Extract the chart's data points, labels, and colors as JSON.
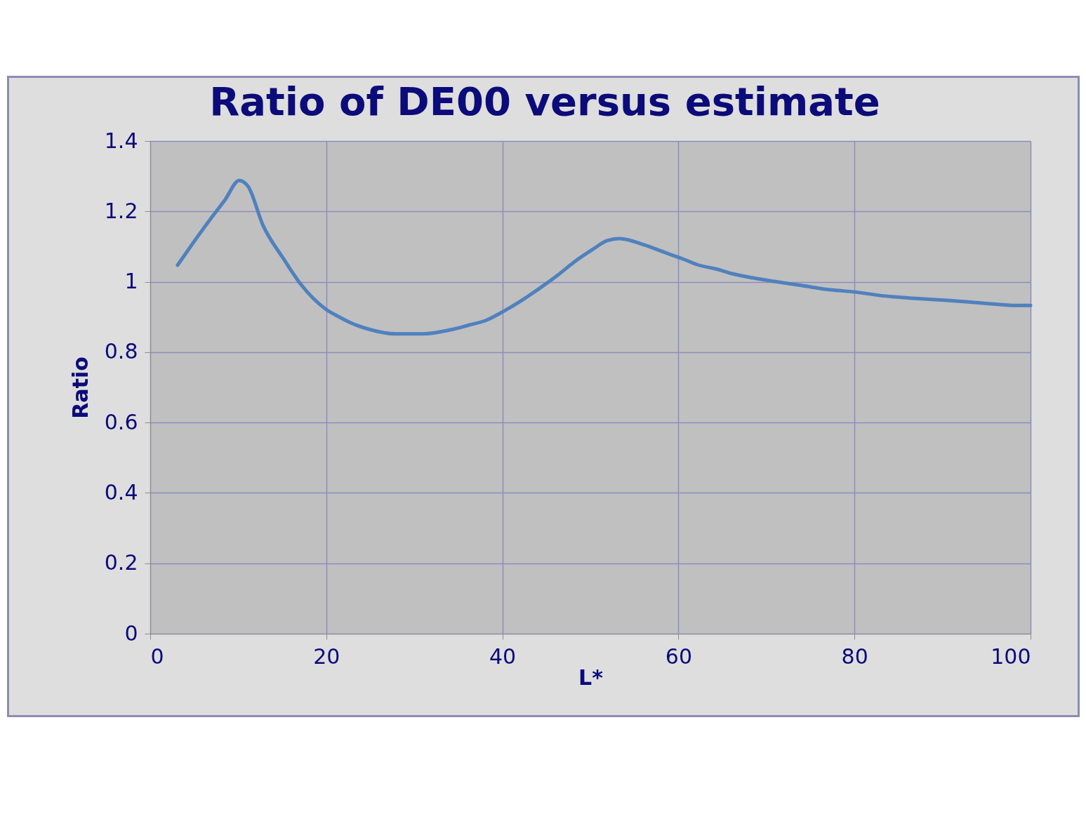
{
  "chart_data": {
    "type": "line",
    "title": "Ratio of DE00 versus estimate",
    "xlabel": "L*",
    "ylabel": "Ratio",
    "xlim": [
      0,
      100
    ],
    "xticks": [
      0,
      20,
      40,
      60,
      80,
      100
    ],
    "ylim": [
      0,
      1.4
    ],
    "yticks": [
      0,
      0.2,
      0.4,
      0.6,
      0.8,
      1,
      1.2,
      1.4
    ],
    "grid": true,
    "legend": false,
    "marker": "none",
    "line_style": "solid",
    "series": [
      {
        "color": "#4f81bd",
        "x": [
          3.1,
          4.1,
          7.1,
          8.5,
          10.1,
          11.1,
          12.8,
          15.1,
          17.1,
          19.9,
          21.4,
          23.0,
          25.0,
          27.8,
          31.0,
          34.2,
          36.2,
          38.2,
          40.2,
          42.2,
          44.2,
          46.2,
          48.2,
          50.2,
          51.9,
          53.3,
          56.1,
          58.5,
          60.5,
          62.1,
          64.5,
          66.1,
          68.5,
          70.9,
          74.1,
          77.3,
          80.1,
          82.9,
          86.9,
          90.8,
          94.8,
          98.0,
          100
        ],
        "values": [
          1.047,
          1.083,
          1.187,
          1.233,
          1.288,
          1.272,
          1.161,
          1.067,
          0.993,
          0.923,
          0.901,
          0.881,
          0.864,
          0.852,
          0.852,
          0.864,
          0.877,
          0.891,
          0.917,
          0.947,
          0.981,
          1.017,
          1.057,
          1.091,
          1.117,
          1.123,
          1.105,
          1.083,
          1.065,
          1.049,
          1.035,
          1.023,
          1.011,
          1.001,
          0.989,
          0.977,
          0.971,
          0.961,
          0.953,
          0.947,
          0.939,
          0.933,
          0.933
        ]
      }
    ]
  }
}
